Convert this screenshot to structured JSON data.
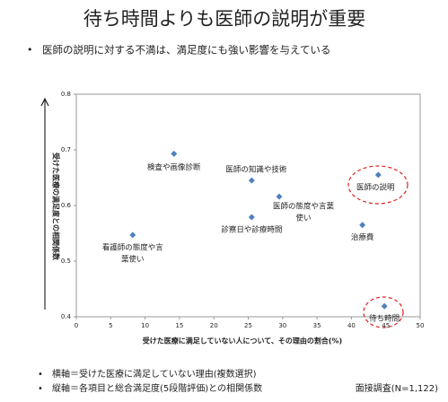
{
  "chart_data": {
    "type": "scatter",
    "title": "待ち時間よりも医師の説明が重要",
    "subtitle": "医師の説明に対する不満は、満足度にも強い影響を与えている",
    "x_label": "受けた医療に満足していない人について、その理由の割合(%)",
    "y_label": "受けた医療の満足度との相関係数",
    "xlim": [
      0,
      50
    ],
    "xticks": [
      0,
      5,
      10,
      15,
      20,
      25,
      30,
      35,
      40,
      45,
      50
    ],
    "ylim": [
      0.4,
      0.8
    ],
    "yticks": [
      0.4,
      0.5,
      0.6,
      0.7,
      0.8
    ],
    "series": [
      {
        "color": "#4f81bd",
        "x": [
          14.2,
          25.5,
          29.5,
          25.5,
          8.2,
          43.9,
          41.6,
          44.8
        ],
        "values": [
          0.693,
          0.645,
          0.616,
          0.579,
          0.547,
          0.655,
          0.565,
          0.419
        ],
        "labels": [
          [
            "検査や画像診断"
          ],
          [
            "医師の知識や技術"
          ],
          [
            "医師の態度や言葉",
            "使い"
          ],
          [
            "診察日や診療時間"
          ],
          [
            "看護師の態度や言",
            "葉使い"
          ],
          [
            "医師の説明"
          ],
          [
            "治療費"
          ],
          [
            "待ち時間"
          ]
        ]
      }
    ],
    "notes": [
      "横軸＝受けた医療に満足していない理由(複数選択)",
      "縦軸＝各項目と総合満足度(5段階評価)との相関係数"
    ],
    "source": "面接調査(N=1,122)"
  }
}
